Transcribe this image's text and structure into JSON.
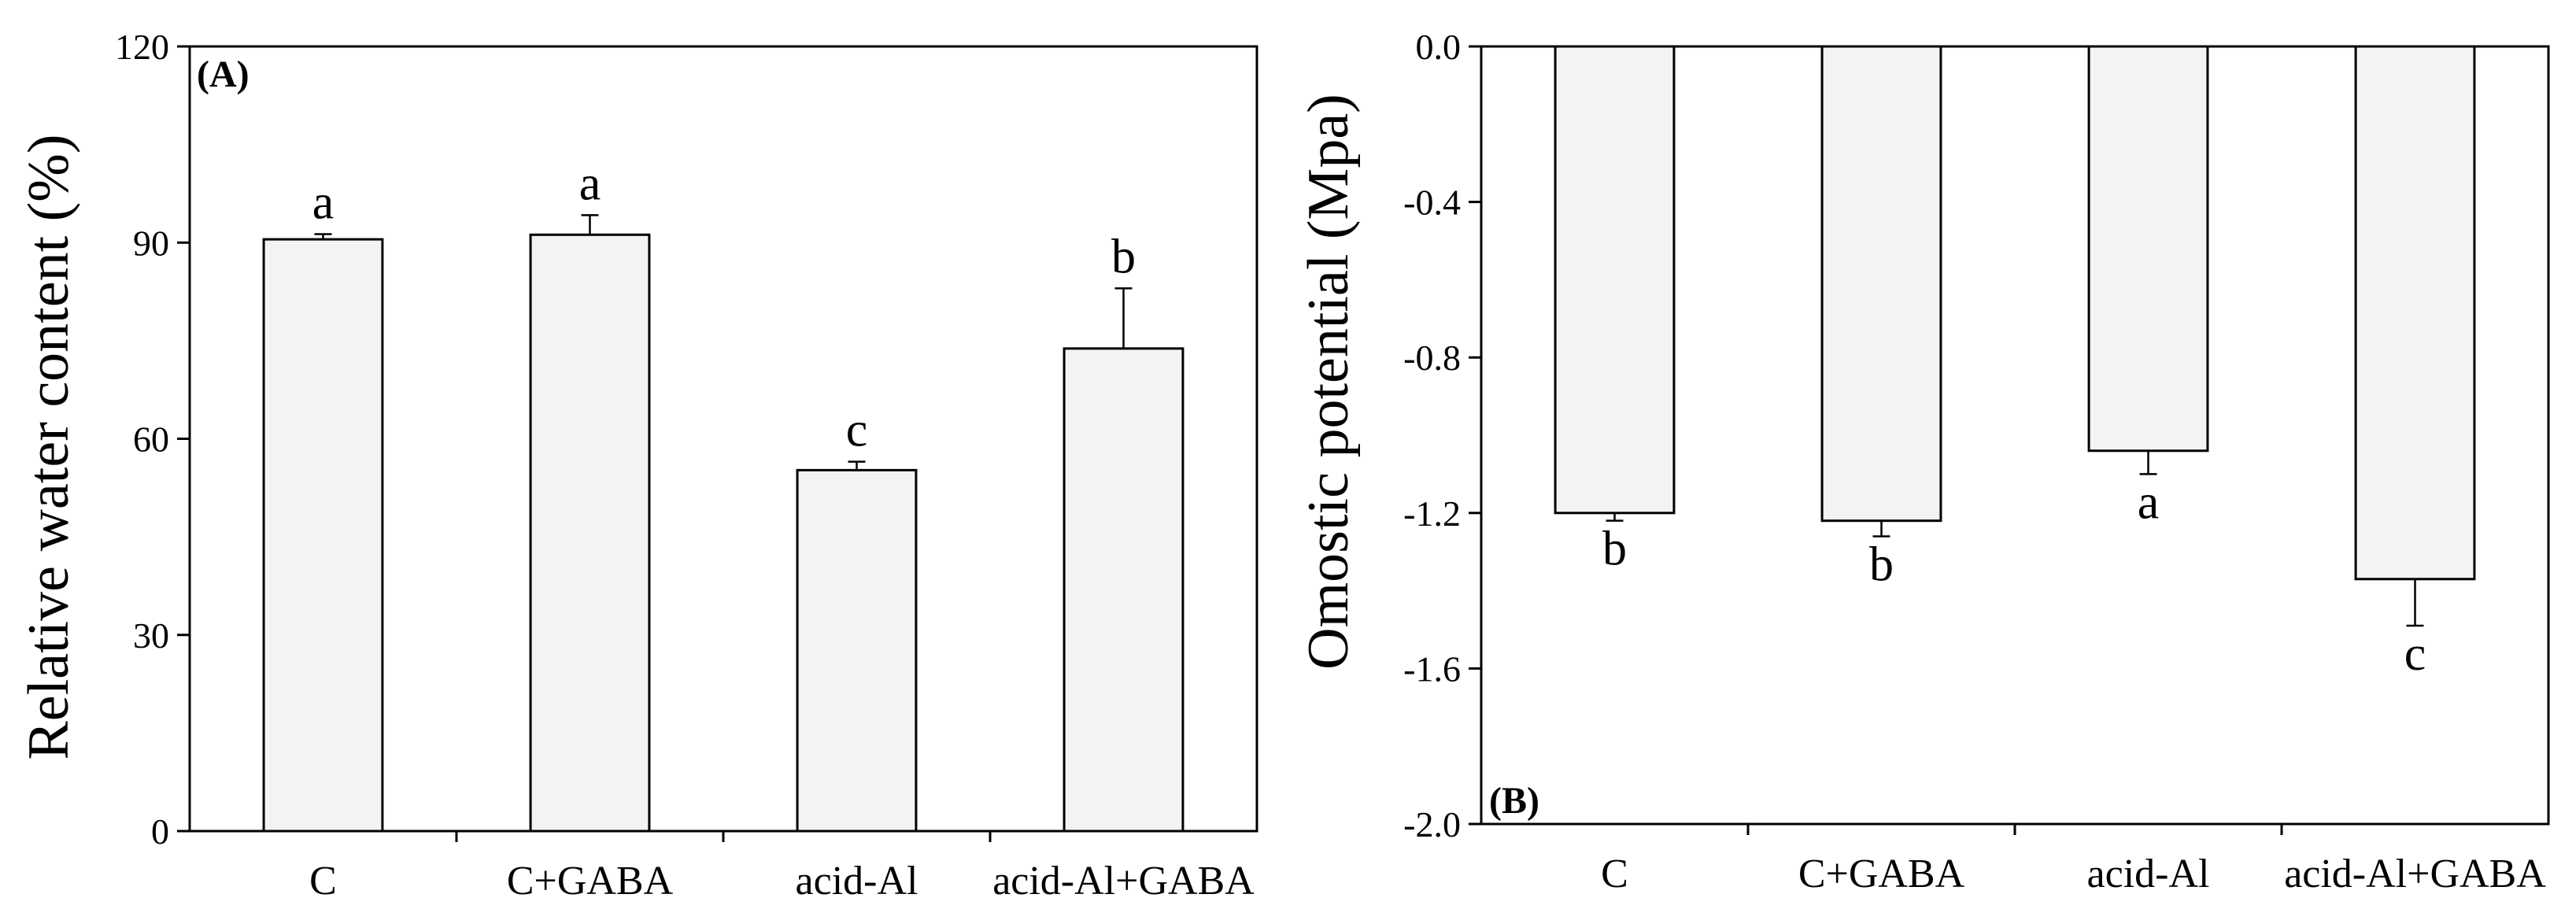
{
  "chart_data": [
    {
      "type": "bar",
      "panel_label": "(A)",
      "categories": [
        "C",
        "C+GABA",
        "acid-Al",
        "acid-Al+GABA"
      ],
      "values": [
        90.5,
        91.2,
        55.2,
        73.8
      ],
      "error": [
        0.8,
        3.0,
        1.3,
        9.2
      ],
      "significance": [
        "a",
        "a",
        "c",
        "b"
      ],
      "ylabel": "Relative water content (%)",
      "xlabel": "",
      "ylim": [
        0,
        120
      ],
      "yticks": [
        0,
        30,
        60,
        90,
        120
      ],
      "ytick_labels": [
        "0",
        "30",
        "60",
        "90",
        "120"
      ],
      "grid": false
    },
    {
      "type": "bar",
      "panel_label": "(B)",
      "categories": [
        "C",
        "C+GABA",
        "acid-Al",
        "acid-Al+GABA"
      ],
      "values": [
        -1.2,
        -1.22,
        -1.04,
        -1.37
      ],
      "error": [
        0.02,
        0.04,
        0.06,
        0.12
      ],
      "significance": [
        "b",
        "b",
        "a",
        "c"
      ],
      "ylabel": "Omostic potential (Mpa)",
      "xlabel": "",
      "ylim": [
        -2.0,
        0.0
      ],
      "yticks": [
        0.0,
        -0.4,
        -0.8,
        -1.2,
        -1.6,
        -2.0
      ],
      "ytick_labels": [
        "0.0",
        "-0.4",
        "-0.8",
        "-1.2",
        "-1.6",
        "-2.0"
      ],
      "grid": false
    }
  ]
}
